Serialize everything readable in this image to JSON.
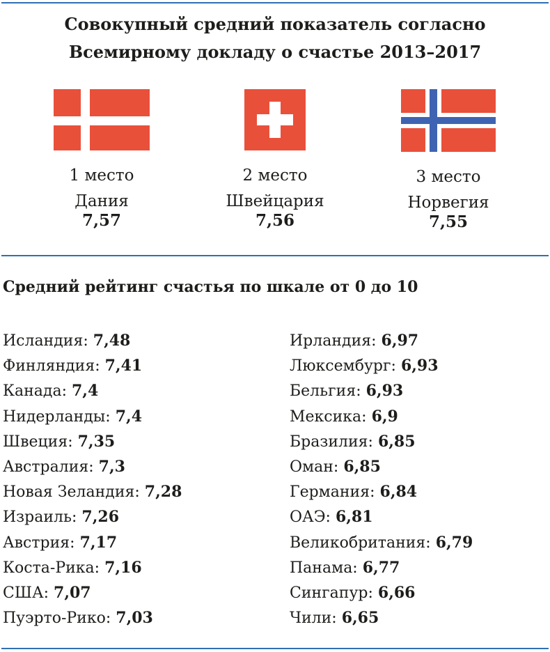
{
  "title": {
    "line1": "Совокупный средний показатель согласно",
    "line2": "Всемирному докладу о счастье 2013–2017"
  },
  "podium": [
    {
      "place": "1 место",
      "country": "Дания",
      "score": "7,57",
      "flag": "denmark-flag"
    },
    {
      "place": "2 место",
      "country": "Швейцария",
      "score": "7,56",
      "flag": "switzerland-flag"
    },
    {
      "place": "3 место",
      "country": "Норвегия",
      "score": "7,55",
      "flag": "norway-flag"
    }
  ],
  "subtitle": "Средний рейтинг счастья по шкале от 0 до 10",
  "left_list": [
    {
      "country": "Исландия:",
      "score": "7,48"
    },
    {
      "country": "Финляндия:",
      "score": "7,41"
    },
    {
      "country": "Канада:",
      "score": "7,4"
    },
    {
      "country": "Нидерланды:",
      "score": "7,4"
    },
    {
      "country": "Швеция:",
      "score": "7,35"
    },
    {
      "country": "Австралия:",
      "score": "7,3"
    },
    {
      "country": "Новая Зеландия:",
      "score": "7,28"
    },
    {
      "country": "Израиль:",
      "score": "7,26"
    },
    {
      "country": "Австрия:",
      "score": "7,17"
    },
    {
      "country": "Коста-Рика:",
      "score": "7,16"
    },
    {
      "country": "США:",
      "score": "7,07"
    },
    {
      "country": "Пуэрто-Рико:",
      "score": "7,03"
    }
  ],
  "right_list": [
    {
      "country": "Ирландия:",
      "score": "6,97"
    },
    {
      "country": "Люксембург:",
      "score": "6,93"
    },
    {
      "country": "Бельгия:",
      "score": "6,93"
    },
    {
      "country": "Мексика:",
      "score": "6,9"
    },
    {
      "country": "Бразилия:",
      "score": "6,85"
    },
    {
      "country": "Оман:",
      "score": "6,85"
    },
    {
      "country": "Германия:",
      "score": "6,84"
    },
    {
      "country": "ОАЭ:",
      "score": "6,81"
    },
    {
      "country": "Великобритания:",
      "score": "6,79"
    },
    {
      "country": "Панама:",
      "score": "6,77"
    },
    {
      "country": "Сингапур:",
      "score": "6,66"
    },
    {
      "country": "Чили:",
      "score": "6,65"
    }
  ],
  "colors": {
    "flag_red": "#e9503a",
    "flag_blue": "#3f63b3",
    "rule_blue": "#2f6fb1"
  }
}
